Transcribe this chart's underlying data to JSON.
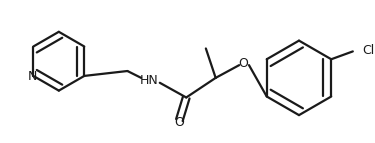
{
  "bg_color": "#ffffff",
  "line_color": "#1a1a1a",
  "text_color": "#1a1a1a",
  "line_width": 1.6,
  "font_size": 8.5,
  "figsize": [
    3.75,
    1.43
  ],
  "dpi": 100,
  "xlim": [
    0,
    375
  ],
  "ylim": [
    0,
    143
  ]
}
